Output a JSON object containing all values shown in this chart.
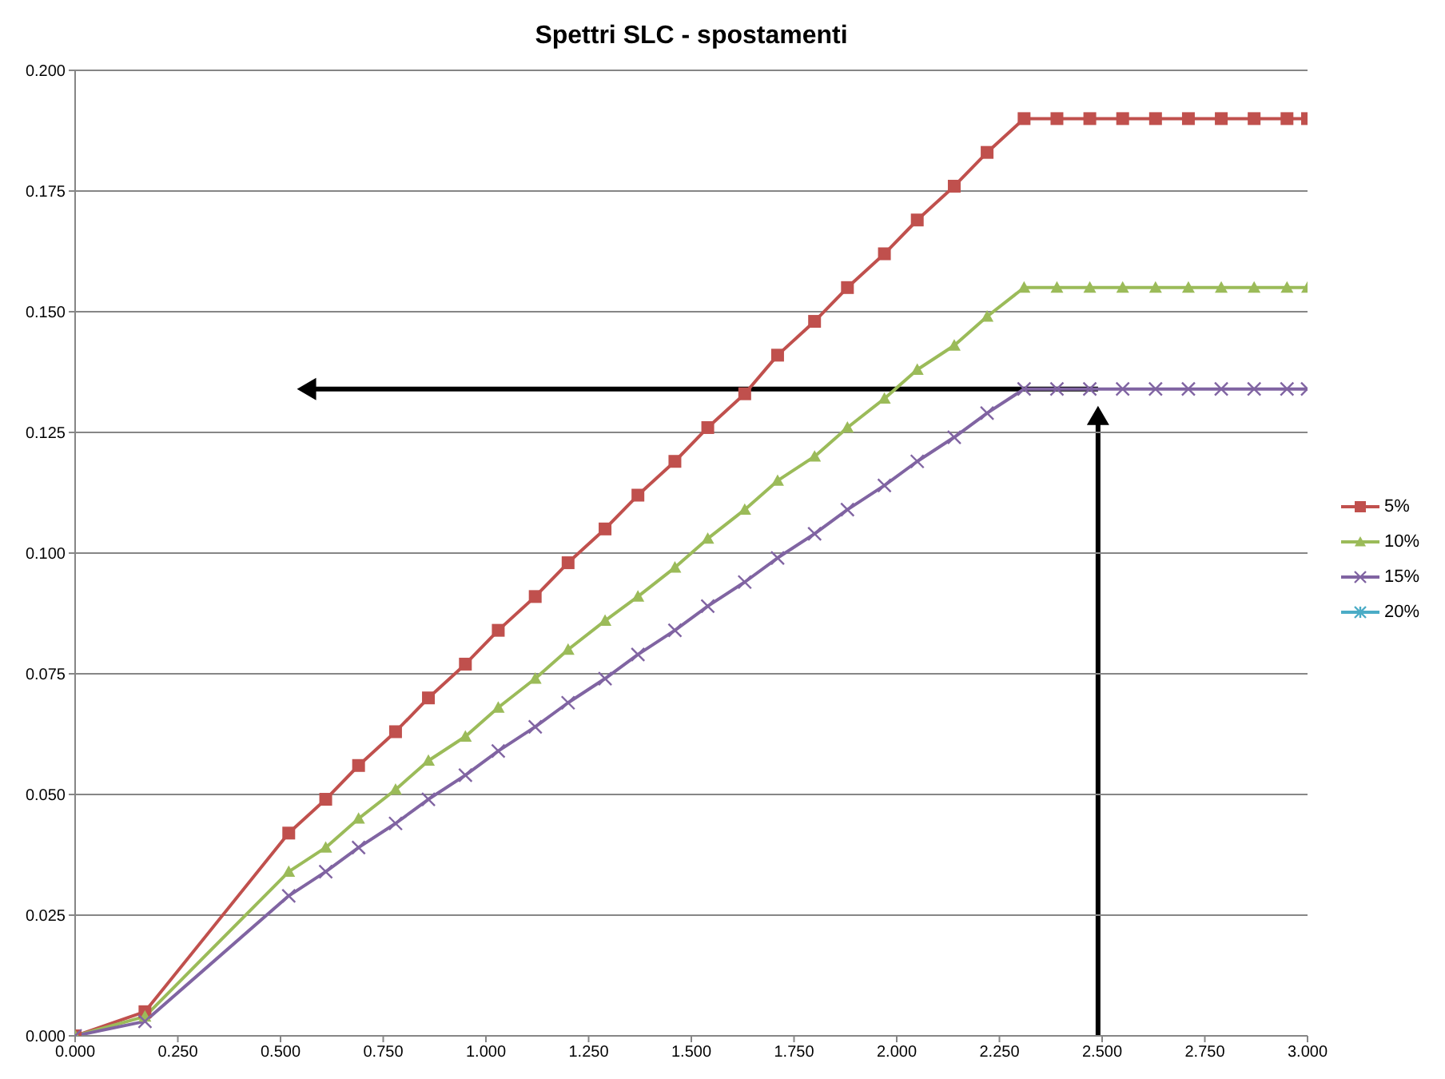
{
  "chart_data": {
    "type": "line",
    "title": "Spettri SLC - spostamenti",
    "x": [
      0,
      0.17,
      0.52,
      0.61,
      0.69,
      0.78,
      0.86,
      0.95,
      1.03,
      1.12,
      1.2,
      1.29,
      1.37,
      1.46,
      1.54,
      1.63,
      1.71,
      1.8,
      1.88,
      1.97,
      2.05,
      2.14,
      2.22,
      2.31,
      2.39,
      2.47,
      2.55,
      2.63,
      2.71,
      2.79,
      2.87,
      2.95,
      3.0
    ],
    "series": [
      {
        "name": "5%",
        "color": "#c0504d",
        "marker": "square",
        "values": [
          0,
          0.005,
          0.042,
          0.049,
          0.056,
          0.063,
          0.07,
          0.077,
          0.084,
          0.091,
          0.098,
          0.105,
          0.112,
          0.119,
          0.126,
          0.133,
          0.141,
          0.148,
          0.155,
          0.162,
          0.169,
          0.176,
          0.183,
          0.19,
          0.19,
          0.19,
          0.19,
          0.19,
          0.19,
          0.19,
          0.19,
          0.19,
          0.19
        ]
      },
      {
        "name": "10%",
        "color": "#9bbb59",
        "marker": "triangle",
        "values": [
          0,
          0.004,
          0.034,
          0.039,
          0.045,
          0.051,
          0.057,
          0.062,
          0.068,
          0.074,
          0.08,
          0.086,
          0.091,
          0.097,
          0.103,
          0.109,
          0.115,
          0.12,
          0.126,
          0.132,
          0.138,
          0.143,
          0.149,
          0.155,
          0.155,
          0.155,
          0.155,
          0.155,
          0.155,
          0.155,
          0.155,
          0.155,
          0.155
        ]
      },
      {
        "name": "15%",
        "color": "#8064a2",
        "marker": "cross",
        "values": [
          0,
          0.003,
          0.029,
          0.034,
          0.039,
          0.044,
          0.049,
          0.054,
          0.059,
          0.064,
          0.069,
          0.074,
          0.079,
          0.084,
          0.089,
          0.094,
          0.099,
          0.104,
          0.109,
          0.114,
          0.119,
          0.124,
          0.129,
          0.134,
          0.134,
          0.134,
          0.134,
          0.134,
          0.134,
          0.134,
          0.134,
          0.134,
          0.134
        ]
      },
      {
        "name": "20%",
        "color": "#4bacc6",
        "marker": "star",
        "values": [
          null,
          null,
          null,
          null,
          null,
          null,
          null,
          null,
          null,
          null,
          null,
          null,
          null,
          null,
          null,
          null,
          null,
          null,
          null,
          null,
          null,
          null,
          null,
          null,
          null,
          null,
          null,
          null,
          null,
          null,
          null,
          null,
          null
        ]
      }
    ],
    "xlim": [
      0,
      3
    ],
    "xticks": [
      {
        "value": 0,
        "label": "0.000"
      },
      {
        "value": 0.25,
        "label": "0.250"
      },
      {
        "value": 0.5,
        "label": "0.500"
      },
      {
        "value": 0.75,
        "label": "0.750"
      },
      {
        "value": 1,
        "label": "1.000"
      },
      {
        "value": 1.25,
        "label": "1.250"
      },
      {
        "value": 1.5,
        "label": "1.500"
      },
      {
        "value": 1.75,
        "label": "1.750"
      },
      {
        "value": 2,
        "label": "2.000"
      },
      {
        "value": 2.25,
        "label": "2.250"
      },
      {
        "value": 2.5,
        "label": "2.500"
      },
      {
        "value": 2.75,
        "label": "2.750"
      },
      {
        "value": 3,
        "label": "3.000"
      }
    ],
    "ylim": [
      0,
      0.2
    ],
    "yticks": [
      {
        "value": 0,
        "label": "0.000"
      },
      {
        "value": 0.025,
        "label": "0.025"
      },
      {
        "value": 0.05,
        "label": "0.050"
      },
      {
        "value": 0.075,
        "label": "0.075"
      },
      {
        "value": 0.1,
        "label": "0.100"
      },
      {
        "value": 0.125,
        "label": "0.125"
      },
      {
        "value": 0.15,
        "label": "0.150"
      },
      {
        "value": 0.175,
        "label": "0.175"
      },
      {
        "value": 0.2,
        "label": "0.200"
      }
    ],
    "grid": "y",
    "legend": "right",
    "line_style": "solid"
  }
}
